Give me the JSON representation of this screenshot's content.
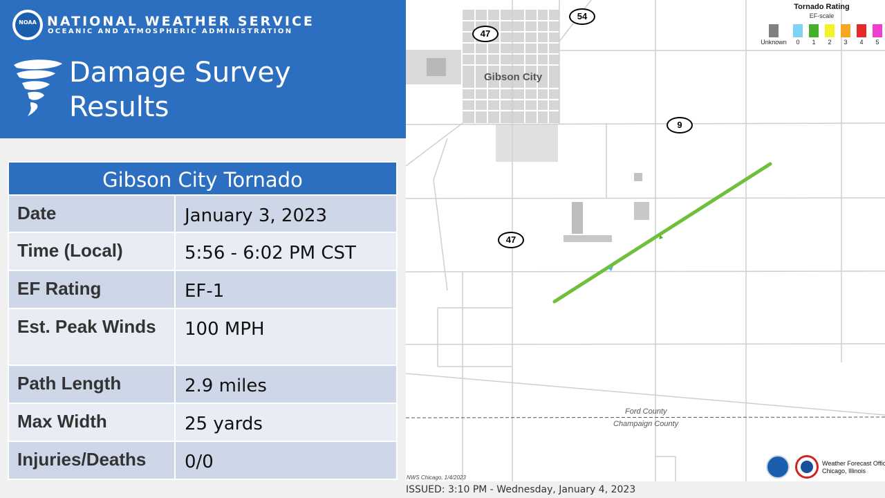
{
  "header": {
    "agency_title": "NATIONAL WEATHER SERVICE",
    "agency_subtitle": "OCEANIC AND ATMOSPHERIC ADMINISTRATION",
    "logo_text": "NOAA",
    "title_line1": "Damage Survey",
    "title_line2": "Results"
  },
  "table": {
    "heading": "Gibson City Tornado",
    "rows": [
      {
        "label": "Date",
        "value": "January 3, 2023"
      },
      {
        "label": "Time (Local)",
        "value": "5:56 - 6:02 PM CST"
      },
      {
        "label": "EF Rating",
        "value": "EF-1"
      },
      {
        "label": "Est. Peak Winds",
        "value": "100 MPH"
      },
      {
        "label": "Path Length",
        "value": "2.9 miles"
      },
      {
        "label": "Max Width",
        "value": "25 yards"
      },
      {
        "label": "Injuries/Deaths",
        "value": "0/0"
      }
    ]
  },
  "map": {
    "town": "Gibson City",
    "route_labels": [
      "54",
      "47",
      "9",
      "47"
    ],
    "county_north": "Ford County",
    "county_south": "Champaign County",
    "credit": "NWS Chicago, 1/4/2023",
    "track_color": "#6fbf3a",
    "legend": {
      "title": "Tornado Rating",
      "subtitle": "EF-scale",
      "items": [
        {
          "label": "Unknown",
          "color": "#808080"
        },
        {
          "label": "0",
          "color": "#7fd4f5"
        },
        {
          "label": "1",
          "color": "#44b02a"
        },
        {
          "label": "2",
          "color": "#f5f22a"
        },
        {
          "label": "3",
          "color": "#f5a623"
        },
        {
          "label": "4",
          "color": "#e62a2a"
        },
        {
          "label": "5",
          "color": "#f03ccf"
        }
      ]
    },
    "office_line1": "Weather Forecast Office",
    "office_line2": "Chicago, Illinois"
  },
  "footer": {
    "issued": "ISSUED: 3:10 PM - Wednesday, January 4, 2023"
  }
}
